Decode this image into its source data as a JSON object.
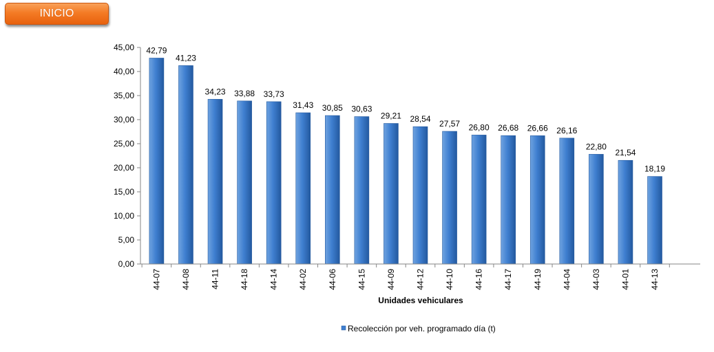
{
  "nav": {
    "inicio_label": "INICIO"
  },
  "colors": {
    "bar_light": "#6fa3e0",
    "bar_mid": "#3f7fd0",
    "bar_dark": "#23599f",
    "axis": "#868686",
    "button": "#f47b25"
  },
  "chart_data": {
    "type": "bar",
    "categories": [
      "44-07",
      "44-08",
      "44-11",
      "44-18",
      "44-14",
      "44-02",
      "44-06",
      "44-15",
      "44-09",
      "44-12",
      "44-10",
      "44-16",
      "44-17",
      "44-19",
      "44-04",
      "44-03",
      "44-01",
      "44-13"
    ],
    "series": [
      {
        "name": "Recolección por veh. programado día (t)",
        "values": [
          42.79,
          41.23,
          34.23,
          33.88,
          33.73,
          31.43,
          30.85,
          30.63,
          29.21,
          28.54,
          27.57,
          26.8,
          26.68,
          26.66,
          26.16,
          22.8,
          21.54,
          18.19
        ],
        "labels": [
          "42,79",
          "41,23",
          "34,23",
          "33,88",
          "33,73",
          "31,43",
          "30,85",
          "30,63",
          "29,21",
          "28,54",
          "27,57",
          "26,80",
          "26,68",
          "26,66",
          "26,16",
          "22,80",
          "21,54",
          "18,19"
        ]
      }
    ],
    "title": "",
    "xlabel": "Unidades vehiculares",
    "ylabel": "",
    "ylim": [
      0,
      45
    ],
    "yticks": [
      0,
      5,
      10,
      15,
      20,
      25,
      30,
      35,
      40,
      45
    ],
    "ytick_labels": [
      "0,00",
      "5,00",
      "10,00",
      "15,00",
      "20,00",
      "25,00",
      "30,00",
      "35,00",
      "40,00",
      "45,00"
    ],
    "grid": false,
    "legend": "bottom"
  }
}
